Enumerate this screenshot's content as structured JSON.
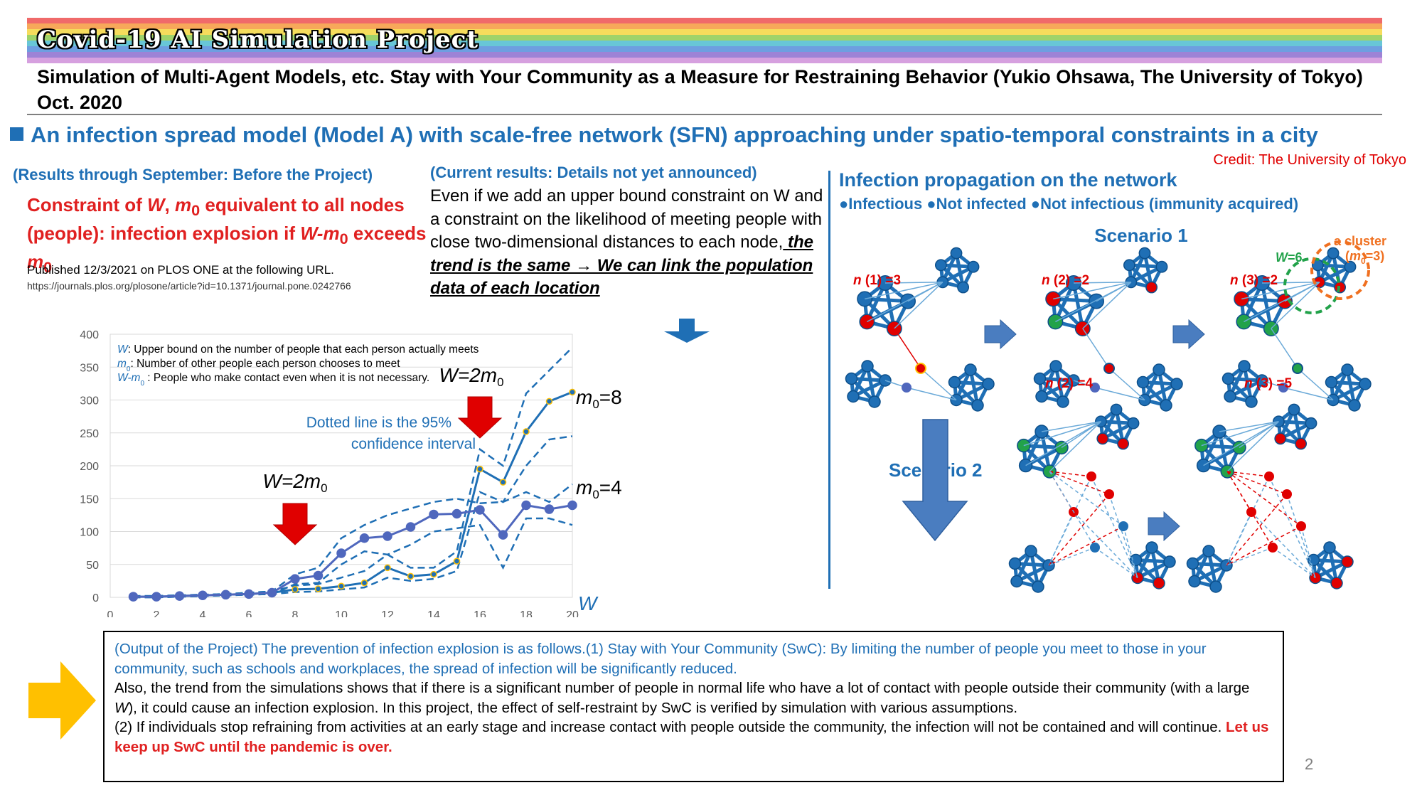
{
  "header": {
    "banner_title": "Covid-19 AI Simulation Project",
    "subtitle": "Simulation of Multi-Agent Models, etc. Stay with Your Community as a Measure for Restraining Behavior (Yukio Ohsawa, The University of Tokyo) Oct. 2020"
  },
  "section_heading": "An infection spread model (Model A) with scale-free network (SFN) approaching under spatio-temporal constraints in a city",
  "credit": "Credit: The University of Tokyo",
  "left_panel": {
    "results_label": "(Results through September: Before the Project)",
    "constraint_parts": [
      "Constraint of ",
      "W",
      ", ",
      "m",
      "0",
      " equivalent to all nodes (people): infection explosion if ",
      "W-m",
      "0",
      " exceeds ",
      "m",
      "0"
    ],
    "published": "Published 12/3/2021 on PLOS ONE at the following URL.",
    "url": "https://journals.plos.org/plosone/article?id=10.1371/journal.pone.0242766"
  },
  "middle_panel": {
    "current_label": "(Current results: Details not yet announced)",
    "body_plain": "Even if we add an upper bound constraint on W and a constraint on the likelihood of meeting people with close two-dimensional distances to each node,",
    "body_emphasis": " the trend is the same → We can link the population data of each location"
  },
  "network_panel": {
    "title": "Infection propagation on the network",
    "legend": "●Infectious ●Not infected ●Not infectious (immunity acquired)",
    "scenario1": "Scenario 1",
    "scenario2": "Scenario 2",
    "n1": "n (1) =3",
    "n2": "n (2) =2",
    "n3": "n (3) =2",
    "n2b": "n (2) =4",
    "n3b": "n (3) =5",
    "w_label": "W=6",
    "cluster_label": "a cluster",
    "cluster_m0": "(m0=3)",
    "colors": {
      "infectious": "#e00000",
      "not_infected": "#1f6fb5",
      "immune": "#22a24a"
    }
  },
  "chart_data": {
    "type": "line",
    "xlabel": "W",
    "xlim": [
      0,
      20
    ],
    "ylim": [
      0,
      400
    ],
    "xticks": [
      "0",
      "2",
      "4",
      "6",
      "8",
      "10",
      "12",
      "14",
      "16",
      "18",
      "20"
    ],
    "yticks": [
      "0",
      "50",
      "100",
      "150",
      "200",
      "250",
      "300",
      "350",
      "400"
    ],
    "legend_notes": [
      "W: Upper bound on the number of people that each person actually meets",
      "m0: Number of other people each person chooses to meet",
      "W-m0 : People who make contact even when it is not necessary."
    ],
    "annotations": {
      "arrow1_label": "W=2m0",
      "arrow2_label": "W=2m0",
      "ci_note_1": "Dotted line is the 95%",
      "ci_note_2": "confidence interval",
      "series_label_8": "m0=8",
      "series_label_4": "m0=4"
    },
    "series": [
      {
        "name": "m0=8",
        "x": [
          1,
          2,
          3,
          4,
          5,
          6,
          7,
          8,
          9,
          10,
          11,
          12,
          13,
          14,
          15,
          16,
          17,
          18,
          19,
          20
        ],
        "y": [
          1,
          1,
          2,
          3,
          4,
          5,
          7,
          12,
          13,
          17,
          22,
          45,
          32,
          35,
          55,
          195,
          175,
          252,
          298,
          312
        ],
        "ci_upper": [
          2,
          2,
          3,
          4,
          5,
          7,
          9,
          18,
          20,
          30,
          40,
          65,
          45,
          45,
          70,
          225,
          200,
          310,
          345,
          380
        ],
        "ci_lower": [
          0,
          0,
          1,
          2,
          3,
          4,
          5,
          8,
          9,
          12,
          15,
          30,
          25,
          28,
          40,
          160,
          145,
          200,
          240,
          245
        ]
      },
      {
        "name": "m0=4",
        "x": [
          1,
          2,
          3,
          4,
          5,
          6,
          7,
          8,
          9,
          10,
          11,
          12,
          13,
          14,
          15,
          16,
          17,
          18,
          19,
          20
        ],
        "y": [
          1,
          1,
          2,
          3,
          4,
          5,
          7,
          28,
          33,
          67,
          90,
          93,
          107,
          126,
          127,
          133,
          95,
          140,
          134,
          140
        ],
        "ci_upper": [
          2,
          2,
          3,
          4,
          5,
          7,
          9,
          35,
          45,
          90,
          110,
          125,
          135,
          145,
          150,
          143,
          145,
          160,
          145,
          172
        ],
        "ci_lower": [
          0,
          0,
          1,
          2,
          3,
          4,
          5,
          20,
          22,
          50,
          70,
          65,
          80,
          100,
          105,
          110,
          45,
          120,
          120,
          110
        ]
      }
    ]
  },
  "output_box": {
    "blue_text": "(Output of the Project) The prevention of infection explosion is as follows.(1) Stay with Your Community (SwC): By limiting the number of people you meet to those in your community, such as schools and workplaces, the spread of infection will be significantly reduced.",
    "para2_a": " Also, the trend from the simulations shows that if there is a significant number of people in normal life who have a lot of contact with people outside their community (with a large ",
    "para2_w": "W",
    "para2_b": "), it could cause an infection explosion. In this project, the effect of self-restraint by SwC is verified by simulation with various assumptions.",
    "para3": "(2) If individuals stop refraining from activities at an early stage and increase contact with people outside the community, the infection will not be contained and will continue. ",
    "para3_red": "Let us keep up SwC until the pandemic is over."
  },
  "page_number": "2"
}
